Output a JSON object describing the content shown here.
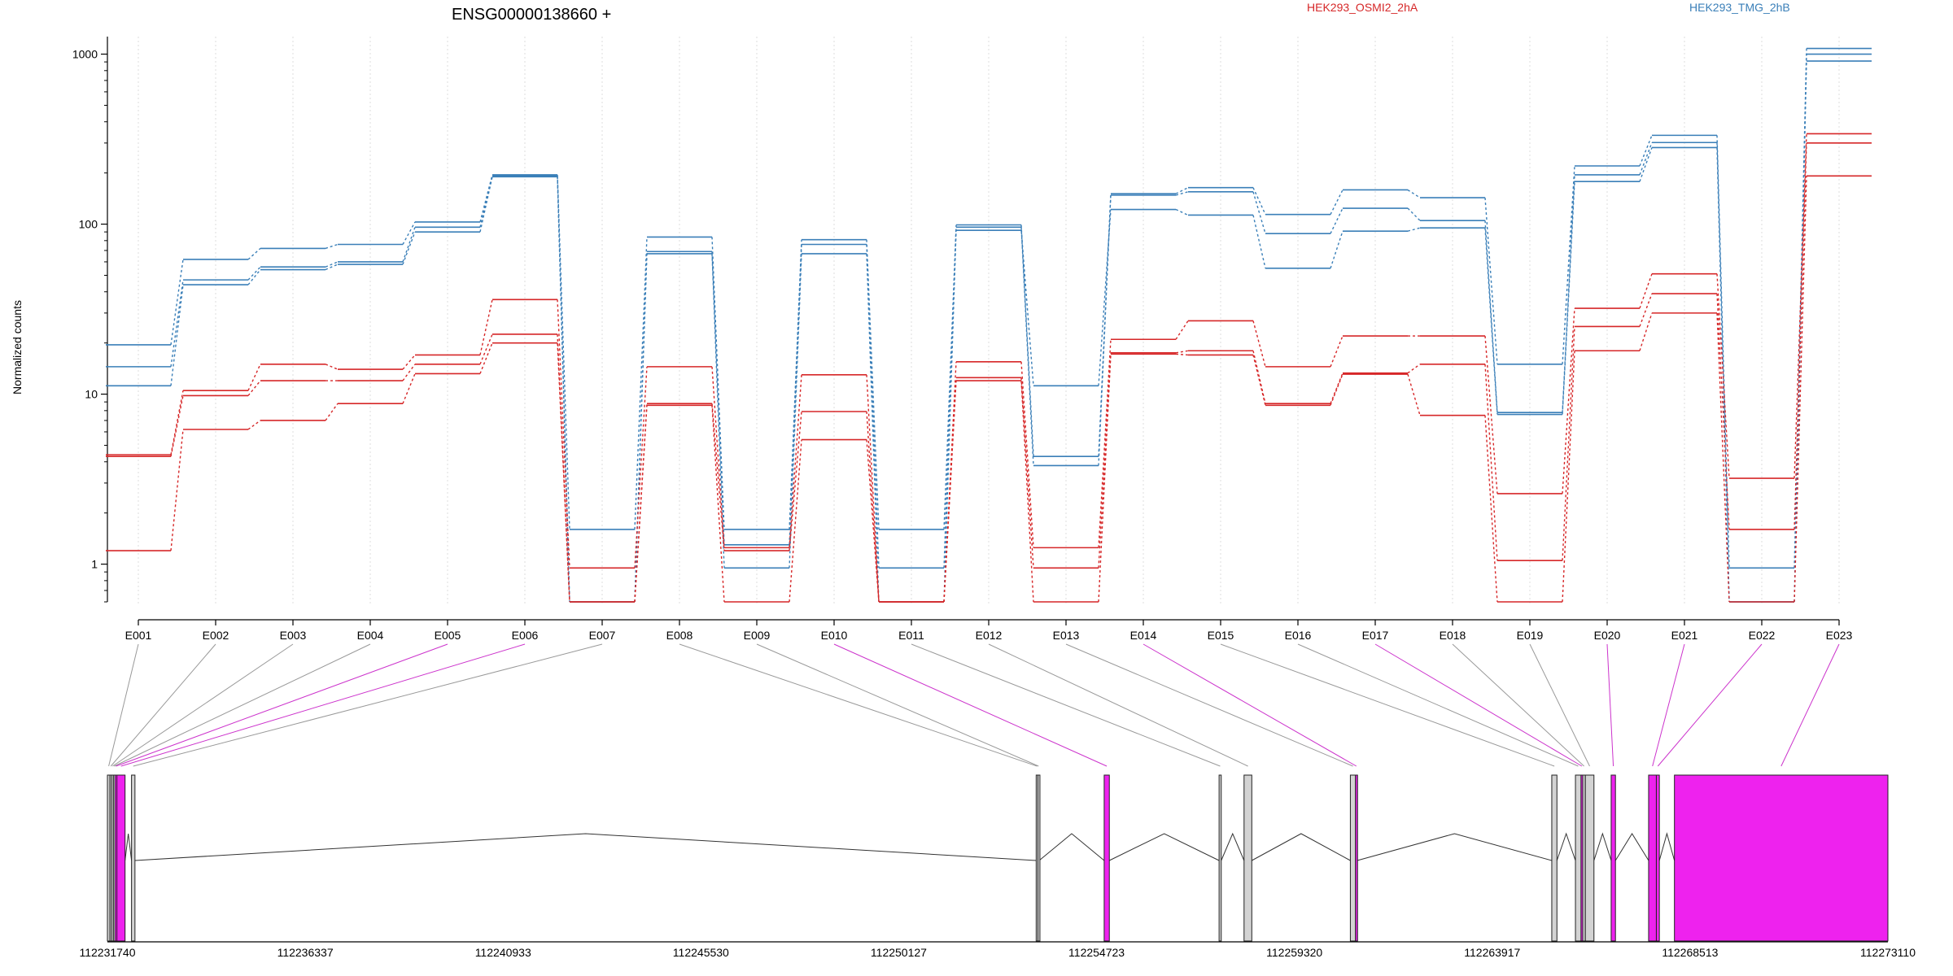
{
  "chart_data": {
    "type": "line",
    "title": "ENSG00000138660 +",
    "ylabel": "Normalized counts",
    "xlabel": "",
    "y_scale": "log",
    "ylim": [
      0.6,
      1200
    ],
    "y_ticks": [
      1,
      10,
      100,
      1000
    ],
    "y_tick_labels": [
      "1",
      "10",
      "100",
      "1000"
    ],
    "grid": "vertical dotted",
    "legend": [
      "HEK293_OSMI2_2hA",
      "HEK293_TMG_2hB"
    ],
    "categories": [
      "E001",
      "E002",
      "E003",
      "E004",
      "E005",
      "E006",
      "E007",
      "E008",
      "E009",
      "E010",
      "E011",
      "E012",
      "E013",
      "E014",
      "E015",
      "E016",
      "E017",
      "E018",
      "E019",
      "E020",
      "E021",
      "E022",
      "E023"
    ],
    "series": [
      {
        "name": "HEK293_TMG_2hB",
        "group": 1,
        "values": [
          19.5,
          62,
          72,
          76,
          103,
          195,
          1.6,
          84,
          1.6,
          81,
          1.6,
          99,
          4.3,
          151,
          164,
          114,
          159,
          143,
          15,
          220,
          333,
          0.95,
          1080
        ]
      },
      {
        "name": "HEK293_TMG_2hB",
        "group": 1,
        "values": [
          14.5,
          47,
          56,
          60,
          96,
          192,
          0.6,
          69,
          1.3,
          76,
          0.95,
          96,
          3.8,
          148,
          155,
          88,
          124,
          105,
          7.8,
          195,
          302,
          0.6,
          1000
        ]
      },
      {
        "name": "HEK293_TMG_2hB",
        "group": 1,
        "values": [
          11.2,
          44,
          54,
          58,
          90,
          190,
          0.6,
          67,
          0.95,
          67,
          0.6,
          92,
          11.2,
          122,
          113,
          55,
          91,
          95,
          7.6,
          178,
          282,
          0.6,
          910
        ]
      },
      {
        "name": "HEK293_OSMI2_2hA",
        "group": 0,
        "values": [
          4.4,
          10.5,
          15,
          14,
          17,
          36,
          0.95,
          14.5,
          1.25,
          13,
          0.6,
          15.5,
          1.25,
          21,
          27,
          14.5,
          22,
          22,
          2.6,
          32,
          51,
          3.2,
          340
        ]
      },
      {
        "name": "HEK293_OSMI2_2hA",
        "group": 0,
        "values": [
          4.3,
          9.8,
          12,
          12,
          15,
          22.5,
          0.6,
          8.8,
          1.2,
          7.9,
          0.6,
          12.5,
          0.95,
          17.5,
          18,
          8.8,
          13.3,
          15,
          1.05,
          25,
          39,
          1.6,
          300
        ]
      },
      {
        "name": "HEK293_OSMI2_2hA",
        "group": 0,
        "values": [
          1.2,
          6.2,
          7,
          8.8,
          13.2,
          20,
          0.6,
          8.6,
          0.6,
          5.4,
          0.6,
          12,
          0.6,
          17.2,
          17,
          8.6,
          13.1,
          7.5,
          0.6,
          18,
          30,
          0.6,
          192
        ]
      }
    ],
    "colors": {
      "HEK293_OSMI2_2hA": "#d62728",
      "HEK293_TMG_2hB": "#3a7fb8",
      "exon_fill": "#d3d3d3",
      "highlight_fill": "#ee22ee",
      "highlight_line": "#cc33cc",
      "connector": "#999999"
    },
    "gene_model": {
      "genomic_range": [
        112231740,
        112273110
      ],
      "axis_labels": [
        "112231740",
        "112236337",
        "112240933",
        "112245530",
        "112250127",
        "112254723",
        "112259320",
        "112263917",
        "112268513",
        "112273110"
      ],
      "exons": [
        {
          "id": "E001",
          "start": 112231740,
          "end": 112231800,
          "highlight": false
        },
        {
          "id": "E002",
          "start": 112231800,
          "end": 112231840,
          "highlight": false
        },
        {
          "id": "E003",
          "start": 112231840,
          "end": 112231880,
          "highlight": false
        },
        {
          "id": "E004",
          "start": 112231880,
          "end": 112231915,
          "highlight": false
        },
        {
          "id": "E005",
          "start": 112231915,
          "end": 112231960,
          "highlight": true
        },
        {
          "id": "E006",
          "start": 112231960,
          "end": 112232150,
          "highlight": true
        },
        {
          "id": "E007",
          "start": 112232300,
          "end": 112232380,
          "highlight": false
        },
        {
          "id": "E008",
          "start": 112253320,
          "end": 112253360,
          "highlight": false
        },
        {
          "id": "E009",
          "start": 112253360,
          "end": 112253390,
          "highlight": false
        },
        {
          "id": "E010",
          "start": 112254900,
          "end": 112255020,
          "highlight": true
        },
        {
          "id": "E011",
          "start": 112257570,
          "end": 112257620,
          "highlight": false
        },
        {
          "id": "E012",
          "start": 112258150,
          "end": 112258330,
          "highlight": false
        },
        {
          "id": "E013",
          "start": 112260620,
          "end": 112260740,
          "highlight": false
        },
        {
          "id": "E014",
          "start": 112260740,
          "end": 112260780,
          "highlight": true
        },
        {
          "id": "E015",
          "start": 112265300,
          "end": 112265420,
          "highlight": false
        },
        {
          "id": "E016",
          "start": 112265850,
          "end": 112265980,
          "highlight": false
        },
        {
          "id": "E017",
          "start": 112265980,
          "end": 112266020,
          "highlight": true
        },
        {
          "id": "E018",
          "start": 112266020,
          "end": 112266080,
          "highlight": false
        },
        {
          "id": "E019",
          "start": 112266080,
          "end": 112266280,
          "highlight": false
        },
        {
          "id": "E020",
          "start": 112266680,
          "end": 112266780,
          "highlight": true
        },
        {
          "id": "E021",
          "start": 112267550,
          "end": 112267730,
          "highlight": true
        },
        {
          "id": "E022",
          "start": 112267730,
          "end": 112267800,
          "highlight": true
        },
        {
          "id": "E023",
          "start": 112268150,
          "end": 112273110,
          "highlight": true
        }
      ]
    }
  }
}
